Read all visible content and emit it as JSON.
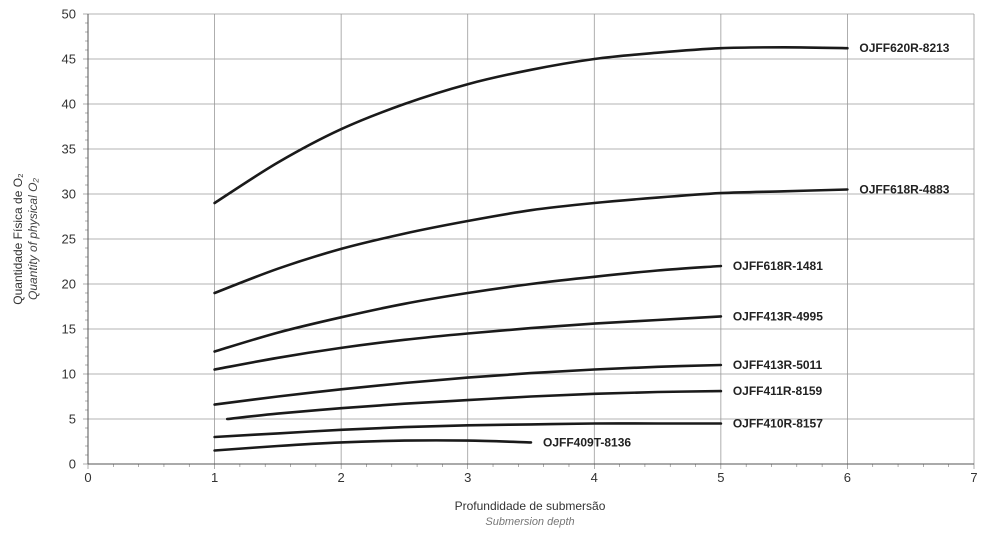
{
  "chart_data": {
    "type": "line",
    "xlabel": "Profundidade de submersão",
    "xlabel_sub": "Submersion depth",
    "ylabel": "Quantidade Física de O₂",
    "ylabel_sub": "Quantity of physical O₂",
    "xlim": [
      0,
      7
    ],
    "ylim": [
      0,
      50
    ],
    "x_ticks": [
      "0",
      "1",
      "2",
      "3",
      "4",
      "5",
      "6",
      "7"
    ],
    "y_ticks": [
      "0",
      "5",
      "10",
      "15",
      "20",
      "25",
      "30",
      "35",
      "40",
      "45",
      "50"
    ],
    "grid": true,
    "series": [
      {
        "name": "OJFF620R-8213",
        "x": [
          1,
          1.5,
          2,
          2.5,
          3,
          3.5,
          4,
          4.5,
          5,
          5.5,
          6
        ],
        "y": [
          29,
          33.5,
          37.2,
          40,
          42.2,
          43.8,
          45,
          45.7,
          46.2,
          46.3,
          46.2
        ]
      },
      {
        "name": "OJFF618R-4883",
        "x": [
          1,
          1.5,
          2,
          2.5,
          3,
          3.5,
          4,
          4.5,
          5,
          5.5,
          6
        ],
        "y": [
          19,
          21.7,
          23.9,
          25.6,
          27,
          28.2,
          29,
          29.6,
          30.1,
          30.3,
          30.5
        ]
      },
      {
        "name": "OJFF618R-1481",
        "x": [
          1,
          1.5,
          2,
          2.5,
          3,
          3.5,
          4,
          4.5,
          5
        ],
        "y": [
          12.5,
          14.6,
          16.3,
          17.8,
          19,
          20,
          20.8,
          21.5,
          22
        ]
      },
      {
        "name": "OJFF413R-4995",
        "x": [
          1,
          1.5,
          2,
          2.5,
          3,
          3.5,
          4,
          4.5,
          5
        ],
        "y": [
          10.5,
          11.8,
          12.9,
          13.8,
          14.5,
          15.1,
          15.6,
          16,
          16.4
        ]
      },
      {
        "name": "OJFF413R-5011",
        "x": [
          1,
          1.5,
          2,
          2.5,
          3,
          3.5,
          4,
          4.5,
          5
        ],
        "y": [
          6.6,
          7.5,
          8.3,
          9,
          9.6,
          10.1,
          10.5,
          10.8,
          11
        ]
      },
      {
        "name": "OJFF411R-8159",
        "x": [
          1.1,
          1.5,
          2,
          2.5,
          3,
          3.5,
          4,
          4.5,
          5
        ],
        "y": [
          5,
          5.6,
          6.2,
          6.7,
          7.1,
          7.5,
          7.8,
          8,
          8.1
        ]
      },
      {
        "name": "OJFF410R-8157",
        "x": [
          1,
          1.5,
          2,
          2.5,
          3,
          3.5,
          4,
          4.5,
          5
        ],
        "y": [
          3,
          3.4,
          3.8,
          4.1,
          4.3,
          4.4,
          4.5,
          4.5,
          4.5
        ]
      },
      {
        "name": "OJFF409T-8136",
        "x": [
          1,
          1.5,
          2,
          2.5,
          3,
          3.5
        ],
        "y": [
          1.5,
          2,
          2.4,
          2.6,
          2.6,
          2.4
        ]
      }
    ]
  }
}
